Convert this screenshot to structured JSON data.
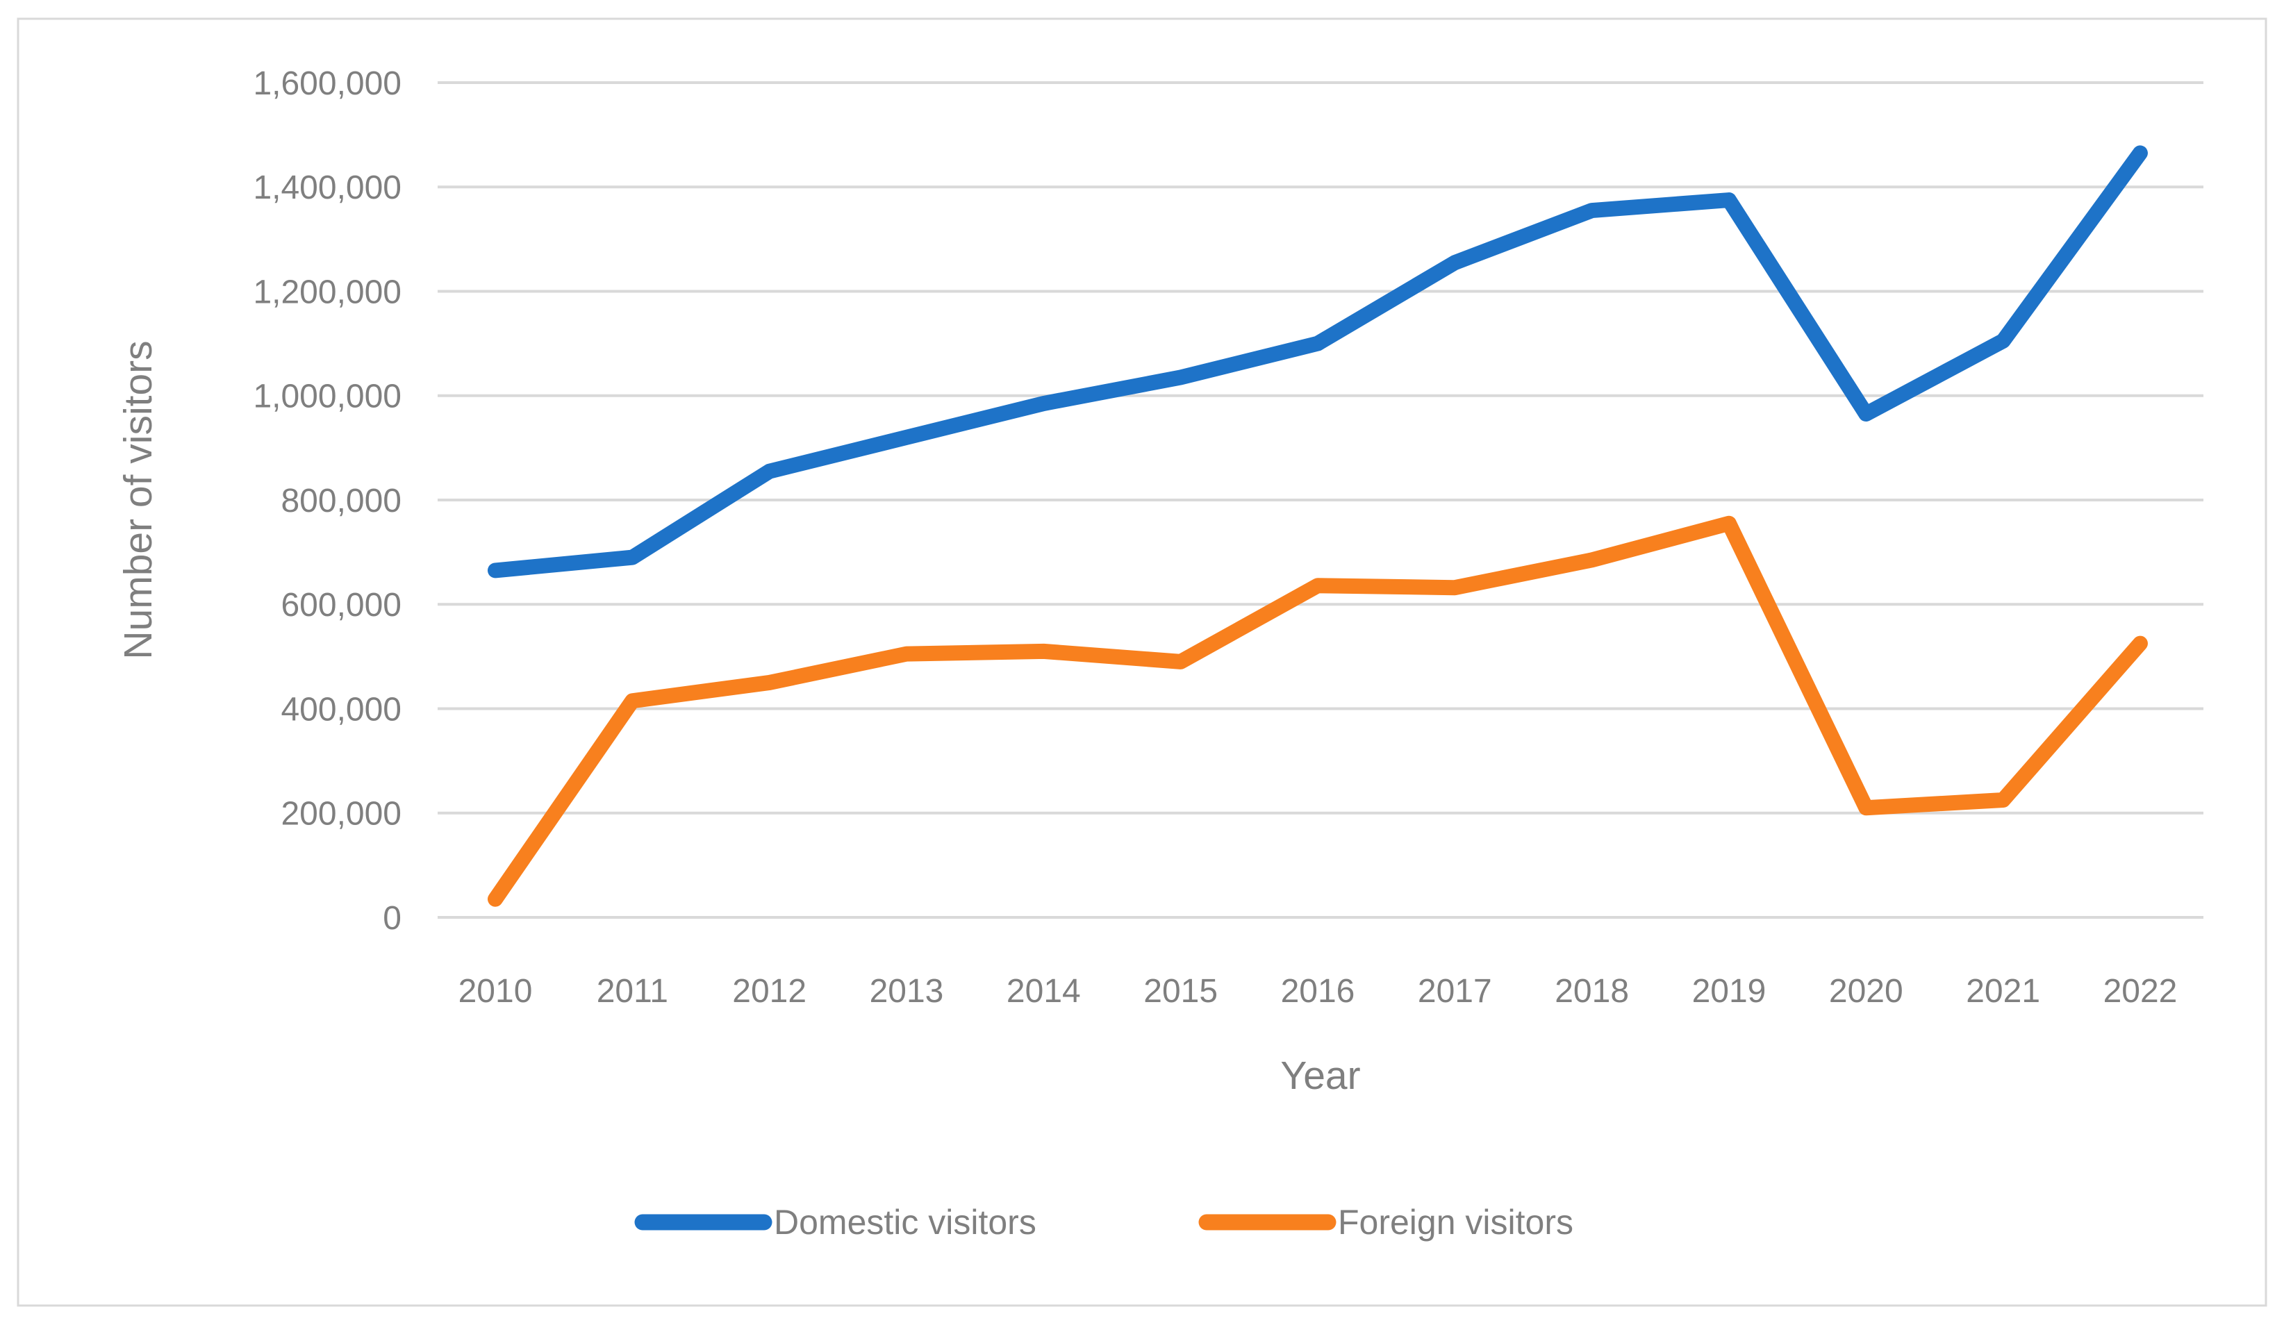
{
  "chart_data": {
    "type": "line",
    "title": "",
    "xlabel": "Year",
    "ylabel": "Number of visitors",
    "categories": [
      "2010",
      "2011",
      "2012",
      "2013",
      "2014",
      "2015",
      "2016",
      "2017",
      "2018",
      "2019",
      "2020",
      "2021",
      "2022"
    ],
    "series": [
      {
        "name": "Domestic visitors",
        "color": "#1E73C8",
        "values": [
          665000,
          690000,
          855000,
          920000,
          985000,
          1035000,
          1100000,
          1255000,
          1355000,
          1375000,
          965000,
          1105000,
          1465000
        ]
      },
      {
        "name": "Foreign visitors",
        "color": "#F8801E",
        "values": [
          35000,
          415000,
          450000,
          505000,
          510000,
          490000,
          636000,
          632000,
          685000,
          755000,
          210000,
          225000,
          525000
        ]
      }
    ],
    "ylim": [
      0,
      1600000
    ],
    "ytick_interval": 200000,
    "ytick_labels": [
      "0",
      "200,000",
      "400,000",
      "600,000",
      "800,000",
      "1,000,000",
      "1,200,000",
      "1,400,000",
      "1,600,000"
    ],
    "grid": true,
    "legend_position": "bottom"
  },
  "styles": {
    "text_color": "#7F7F7F",
    "gridline_color": "#D9D9D9",
    "border_color": "#D9D9D9",
    "background_color": "#FFFFFF"
  }
}
